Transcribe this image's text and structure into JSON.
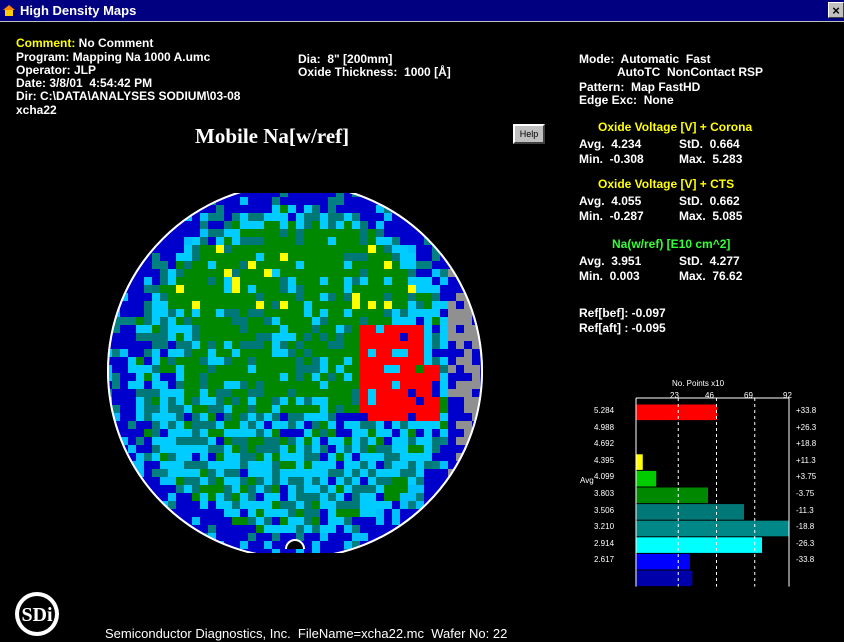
{
  "window": {
    "title": "High Density Maps",
    "close_label": "×"
  },
  "header": {
    "comment_label": "Comment:",
    "comment_value": " No Comment",
    "program": "Program: Mapping Na 1000 A.umc",
    "operator": "Operator: JLP",
    "date": "Date: 3/8/01  4:54:42 PM",
    "dir": "Dir: C:\\DATA\\ANALYSES SODIUM\\03-08",
    "wafer_id": "xcha22",
    "dia": "Dia:  8\" [200mm]",
    "oxide_thickness": "Oxide Thickness:  1000 [Å]"
  },
  "mode": {
    "mode": "Mode:  Automatic  Fast",
    "mode2": "AutoTC  NonContact RSP",
    "pattern": "Pattern:  Map FastHD",
    "edge": "Edge Exc:  None"
  },
  "map": {
    "title": "Mobile Na[w/ref]",
    "help_label": "Help"
  },
  "stats": [
    {
      "title": "Oxide Voltage [V] + Corona",
      "color": "#ffff00",
      "avg": "Avg.  4.234",
      "std": "StD.  0.664",
      "min": "Min.  -0.308",
      "max": "Max.  5.283"
    },
    {
      "title": "Oxide Voltage [V] + CTS",
      "color": "#ffff00",
      "avg": "Avg.  4.055",
      "std": "StD.  0.662",
      "min": "Min.  -0.287",
      "max": "Max.  5.085"
    },
    {
      "title": "Na(w/ref) [E10 cm^2]",
      "color": "#33ff33",
      "avg": "Avg.  3.951",
      "std": "StD.  4.277",
      "min": "Min.  0.003",
      "max": "Max.  76.62"
    }
  ],
  "ref": {
    "bef": "Ref[bef]: -0.097",
    "aft": "Ref[aft] : -0.095"
  },
  "histogram": {
    "axis_title": "No. Points x10",
    "top_ticks": [
      "23",
      "46",
      "69",
      "92"
    ],
    "avg_label": "Avg",
    "bins": [
      {
        "left": "5.284",
        "right": "+33.8",
        "count": 18,
        "color": "#ff0000"
      },
      {
        "left": "4.988",
        "right": "+26.3",
        "count": 0,
        "color": "#ff8800"
      },
      {
        "left": "4.692",
        "right": "+18.8",
        "count": 0,
        "color": "#ffff00"
      },
      {
        "left": "4.395",
        "right": "+11.3",
        "count": 1.5,
        "color": "#ffff00"
      },
      {
        "left": "4.099",
        "right": "+3.75",
        "count": 4.5,
        "color": "#00cc00"
      },
      {
        "left": "3.803",
        "right": "-3.75",
        "count": 16,
        "color": "#008800"
      },
      {
        "left": "3.506",
        "right": "-11.3",
        "count": 24,
        "color": "#007878"
      },
      {
        "left": "3.210",
        "right": "-18.8",
        "count": 34,
        "color": "#008888"
      },
      {
        "left": "2.914",
        "right": "-26.3",
        "count": 28,
        "color": "#00ffff"
      },
      {
        "left": "2.617",
        "right": "-33.8",
        "count": 12,
        "color": "#0000ff"
      },
      {
        "left": "",
        "right": "",
        "count": 12.5,
        "color": "#0000aa"
      }
    ]
  },
  "footer": {
    "text": "Semiconductor Diagnostics, Inc.  FileName=xcha22.mc  Wafer No: 22",
    "logo_text": "SDi"
  }
}
